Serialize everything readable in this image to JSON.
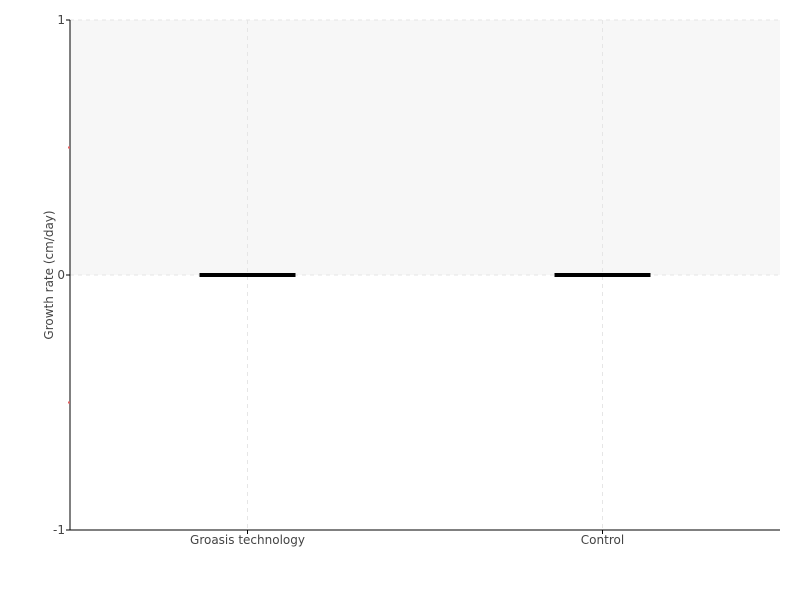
{
  "chart_data": {
    "type": "box",
    "title": "",
    "xlabel": "",
    "ylabel": "Growth rate (cm/day)",
    "ylim": [
      -1,
      1
    ],
    "yticks": [
      -1,
      0,
      1
    ],
    "y_minor_ticks": [
      -0.5,
      0.5
    ],
    "grid": true,
    "categories": [
      "Groasis technology",
      "Control"
    ],
    "boxes": [
      {
        "category": "Groasis technology",
        "min": 0,
        "q1": 0,
        "median": 0,
        "q3": 0,
        "max": 0
      },
      {
        "category": "Control",
        "min": 0,
        "q1": 0,
        "median": 0,
        "q3": 0,
        "max": 0
      }
    ],
    "shaded_band": [
      0,
      1
    ],
    "colors": {
      "box": "#000000",
      "band": "#f7f7f7",
      "grid": "#e6e6e6",
      "minor_tick": "#e06060",
      "axis": "#000000"
    }
  }
}
